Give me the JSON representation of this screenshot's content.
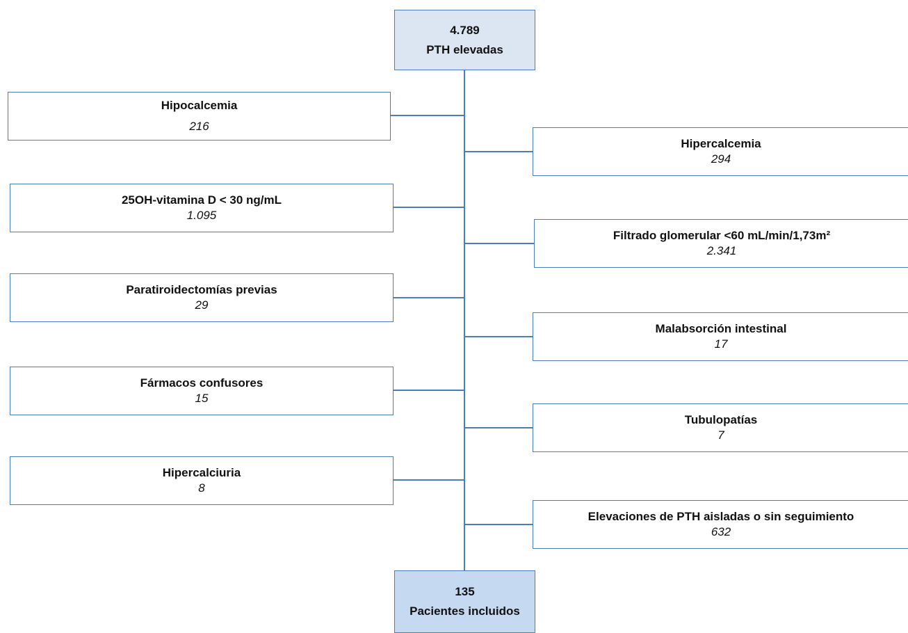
{
  "top": {
    "count": "4.789",
    "label": "PTH elevadas"
  },
  "bottom": {
    "count": "135",
    "label": "Pacientes incluidos"
  },
  "left": [
    {
      "label": "Hipocalcemia",
      "count": "216"
    },
    {
      "label": "25OH-vitamina D < 30 ng/mL",
      "count": "1.095"
    },
    {
      "label": "Paratiroidectomías previas",
      "count": "29"
    },
    {
      "label": "Fármacos confusores",
      "count": "15"
    },
    {
      "label": "Hipercalciuria",
      "count": "8"
    }
  ],
  "right": [
    {
      "label": "Hipercalcemia",
      "count": "294"
    },
    {
      "label": "Filtrado glomerular <60 mL/min/1,73m²",
      "count": "2.341"
    },
    {
      "label": "Malabsorción intestinal",
      "count": "17"
    },
    {
      "label": "Tubulopatías",
      "count": "7"
    },
    {
      "label": "Elevaciones de PTH aisladas o sin seguimiento",
      "count": "632"
    }
  ],
  "colors": {
    "border": "#4a7ebb",
    "line": "#4a7ebb",
    "main_fill": "#dce6f2",
    "final_fill": "#c5d9f1"
  }
}
